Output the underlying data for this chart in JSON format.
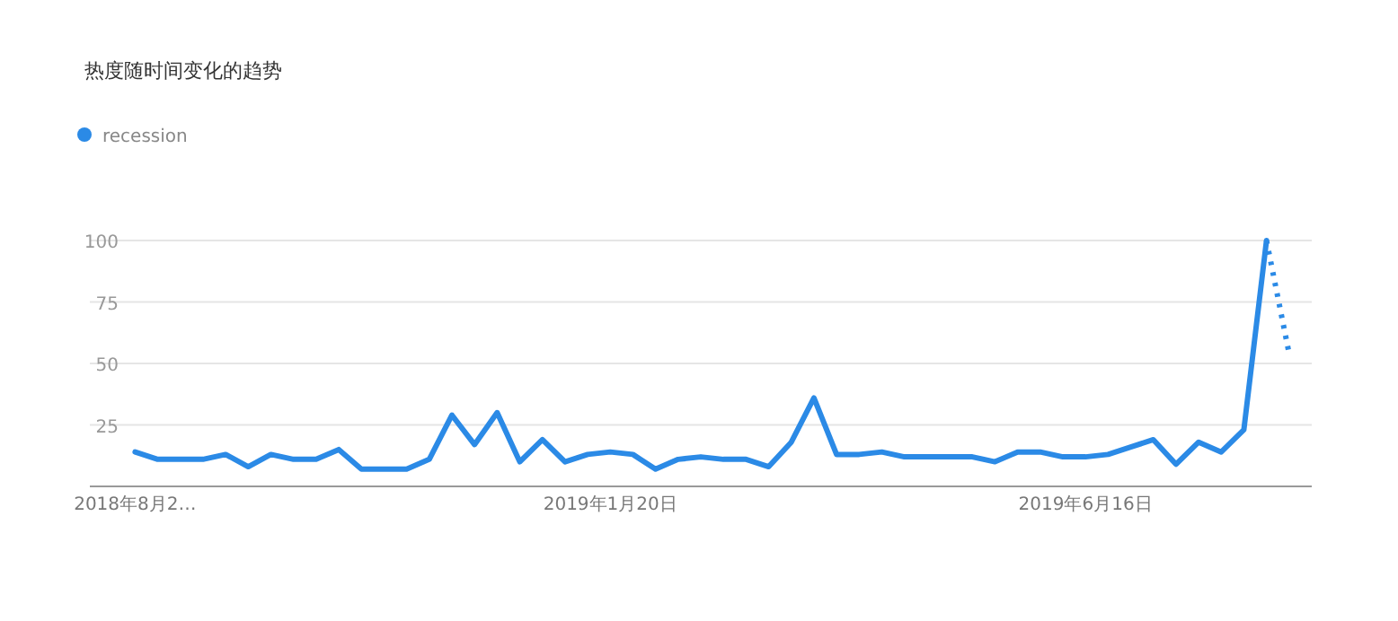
{
  "chart_data": {
    "type": "line",
    "title": "热度随时间变化的趋势",
    "x": [
      "2018-08-26",
      "2018-09-02",
      "2018-09-09",
      "2018-09-16",
      "2018-09-23",
      "2018-09-30",
      "2018-10-07",
      "2018-10-14",
      "2018-10-21",
      "2018-10-28",
      "2018-11-04",
      "2018-11-11",
      "2018-11-18",
      "2018-11-25",
      "2018-12-02",
      "2018-12-09",
      "2018-12-16",
      "2018-12-23",
      "2018-12-30",
      "2019-01-06",
      "2019-01-13",
      "2019-01-20",
      "2019-01-27",
      "2019-02-03",
      "2019-02-10",
      "2019-02-17",
      "2019-02-24",
      "2019-03-03",
      "2019-03-10",
      "2019-03-17",
      "2019-03-24",
      "2019-03-31",
      "2019-04-07",
      "2019-04-14",
      "2019-04-21",
      "2019-04-28",
      "2019-05-05",
      "2019-05-12",
      "2019-05-19",
      "2019-05-26",
      "2019-06-02",
      "2019-06-09",
      "2019-06-16",
      "2019-06-23",
      "2019-06-30",
      "2019-07-07",
      "2019-07-14",
      "2019-07-21",
      "2019-07-28",
      "2019-08-04",
      "2019-08-11",
      "2019-08-18"
    ],
    "series": [
      {
        "name": "recession",
        "color": "#2b8ae6",
        "line_style": "solid",
        "values": [
          14,
          11,
          11,
          11,
          13,
          8,
          13,
          11,
          11,
          15,
          7,
          7,
          7,
          11,
          29,
          17,
          30,
          10,
          19,
          10,
          13,
          14,
          13,
          7,
          11,
          12,
          11,
          11,
          8,
          18,
          36,
          13,
          13,
          14,
          12,
          12,
          12,
          12,
          10,
          14,
          14,
          12,
          12,
          13,
          16,
          19,
          9,
          18,
          14,
          23,
          100,
          null
        ]
      },
      {
        "color": "#2b8ae6",
        "line_style": "dotted",
        "values": [
          null,
          null,
          null,
          null,
          null,
          null,
          null,
          null,
          null,
          null,
          null,
          null,
          null,
          null,
          null,
          null,
          null,
          null,
          null,
          null,
          null,
          null,
          null,
          null,
          null,
          null,
          null,
          null,
          null,
          null,
          null,
          null,
          null,
          null,
          null,
          null,
          null,
          null,
          null,
          null,
          null,
          null,
          null,
          null,
          null,
          null,
          null,
          null,
          null,
          null,
          100,
          54
        ]
      }
    ],
    "xlim": [
      "2018-08-12",
      "2019-08-25"
    ],
    "xticks": [
      {
        "value": "2018-08-26",
        "label": "2018年8月2…"
      },
      {
        "value": "2019-01-20",
        "label": "2019年1月20日"
      },
      {
        "value": "2019-06-16",
        "label": "2019年6月16日"
      }
    ],
    "ylim": [
      0,
      100
    ],
    "yticks": [
      {
        "value": 0,
        "label": null
      },
      25,
      50,
      75,
      100
    ],
    "grid": "y",
    "legend": "top left",
    "marker": "none"
  }
}
